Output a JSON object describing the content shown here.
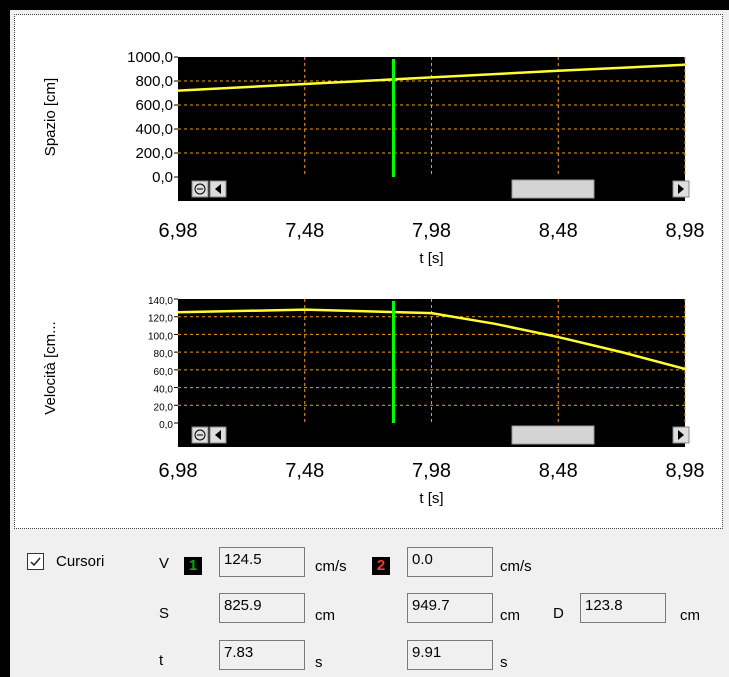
{
  "charts": [
    {
      "ylabel": "Spazio [cm]",
      "xlabel": "t [s]",
      "yticks": [
        "1000,0",
        "800,0",
        "600,0",
        "400,0",
        "200,0",
        "0,0"
      ],
      "xticks": [
        "6,98",
        "7,48",
        "7,98",
        "8,48",
        "8,98"
      ]
    },
    {
      "ylabel": "Velocità [cm...",
      "xlabel": "t [s]",
      "yticks": [
        "140,0",
        "120,0",
        "100,0",
        "80,0",
        "60,0",
        "40,0",
        "20,0",
        "0,0"
      ],
      "xticks": [
        "6,98",
        "7,48",
        "7,98",
        "8,48",
        "8,98"
      ]
    }
  ],
  "chart_data": [
    {
      "type": "line",
      "xlabel": "t [s]",
      "ylabel": "Spazio [cm]",
      "xlim": [
        6.98,
        8.98
      ],
      "ylim": [
        0,
        1000
      ],
      "grid": true,
      "cursor_x": 7.83,
      "series": [
        {
          "x": [
            6.98,
            7.48,
            7.98,
            8.48,
            8.98
          ],
          "y": [
            720,
            775,
            830,
            885,
            935
          ]
        }
      ],
      "colors": {
        "background": "#000000",
        "line": "#ffff33",
        "grid": "#ff9900",
        "cursor": "#00ff00"
      }
    },
    {
      "type": "line",
      "xlabel": "t [s]",
      "ylabel": "Velocità [cm...",
      "xlim": [
        6.98,
        8.98
      ],
      "ylim": [
        0,
        140
      ],
      "grid": true,
      "cursor_x": 7.83,
      "series": [
        {
          "x": [
            6.98,
            7.48,
            7.98,
            8.23,
            8.48,
            8.73,
            8.98
          ],
          "y": [
            125,
            128,
            124,
            112,
            97,
            80,
            61
          ]
        }
      ],
      "colors": {
        "background": "#000000",
        "line": "#ffff33",
        "grid": "#ff9900",
        "cursor": "#00ff00"
      }
    }
  ],
  "cursors": {
    "checkbox_label": "Cursori",
    "checked": true,
    "row_labels": {
      "v": "V",
      "s": "S",
      "t": "t"
    },
    "badge1": "1",
    "badge2": "2",
    "badge1_color": "#00aa00",
    "badge2_color": "#ff3333",
    "v1": "124.5",
    "v2": "0.0",
    "v_unit": "cm/s",
    "s1": "825.9",
    "s2": "949.7",
    "s_unit": "cm",
    "d_label": "D",
    "d_value": "123.8",
    "d_unit": "cm",
    "t1": "7.83",
    "t2": "9.91",
    "t_unit": "s"
  }
}
